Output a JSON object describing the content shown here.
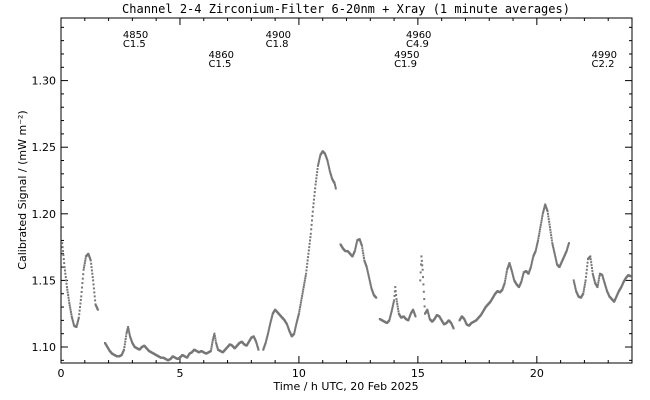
{
  "chart_data": {
    "type": "scatter",
    "title": "Channel 2-4   Zirconium-Filter   6-20nm + Xray   (1 minute averages)",
    "xlabel": "Time / h UTC, 20 Feb 2025",
    "ylabel": "Calibrated Signal / (mW m⁻²)",
    "xlim": [
      0,
      24
    ],
    "ylim": [
      1.088,
      1.347
    ],
    "x_ticks": [
      0,
      5,
      10,
      15,
      20
    ],
    "y_ticks": [
      1.1,
      1.15,
      1.2,
      1.25,
      1.3
    ],
    "x_tick_labels": [
      "0",
      "5",
      "10",
      "15",
      "20"
    ],
    "y_tick_labels": [
      "1.10",
      "1.15",
      "1.20",
      "1.25",
      "1.30"
    ],
    "grid": false,
    "color": "#777777",
    "annotations": [
      {
        "x": 2.6,
        "level": "high",
        "number": "4850",
        "class": "C1.5"
      },
      {
        "x": 6.2,
        "level": "low",
        "number": "4860",
        "class": "C1.5"
      },
      {
        "x": 8.6,
        "level": "high",
        "number": "4900",
        "class": "C1.8"
      },
      {
        "x": 14.0,
        "level": "low",
        "number": "4950",
        "class": "C1.9"
      },
      {
        "x": 14.5,
        "level": "high",
        "number": "4960",
        "class": "C4.9"
      },
      {
        "x": 22.3,
        "level": "low",
        "number": "4990",
        "class": "C2.2"
      }
    ],
    "series_points": [
      [
        0.05,
        1.178
      ],
      [
        0.15,
        1.16
      ],
      [
        0.25,
        1.145
      ],
      [
        0.35,
        1.133
      ],
      [
        0.45,
        1.123
      ],
      [
        0.55,
        1.116
      ],
      [
        0.65,
        1.115
      ],
      [
        0.75,
        1.122
      ],
      [
        0.85,
        1.138
      ],
      [
        0.95,
        1.158
      ],
      [
        1.05,
        1.168
      ],
      [
        1.15,
        1.17
      ],
      [
        1.25,
        1.165
      ],
      [
        1.35,
        1.15
      ],
      [
        1.45,
        1.132
      ],
      [
        1.55,
        1.128
      ],
      [
        1.85,
        1.103
      ],
      [
        1.95,
        1.1
      ],
      [
        2.05,
        1.097
      ],
      [
        2.15,
        1.095
      ],
      [
        2.25,
        1.094
      ],
      [
        2.35,
        1.093
      ],
      [
        2.45,
        1.093
      ],
      [
        2.55,
        1.094
      ],
      [
        2.65,
        1.098
      ],
      [
        2.75,
        1.11
      ],
      [
        2.82,
        1.115
      ],
      [
        2.9,
        1.108
      ],
      [
        3.0,
        1.103
      ],
      [
        3.1,
        1.1
      ],
      [
        3.2,
        1.099
      ],
      [
        3.3,
        1.098
      ],
      [
        3.4,
        1.1
      ],
      [
        3.5,
        1.101
      ],
      [
        3.6,
        1.099
      ],
      [
        3.7,
        1.097
      ],
      [
        3.8,
        1.096
      ],
      [
        3.9,
        1.095
      ],
      [
        4.0,
        1.094
      ],
      [
        4.1,
        1.093
      ],
      [
        4.2,
        1.092
      ],
      [
        4.3,
        1.092
      ],
      [
        4.4,
        1.091
      ],
      [
        4.5,
        1.09
      ],
      [
        4.6,
        1.091
      ],
      [
        4.7,
        1.093
      ],
      [
        4.8,
        1.092
      ],
      [
        4.9,
        1.091
      ],
      [
        5.0,
        1.092
      ],
      [
        5.1,
        1.094
      ],
      [
        5.2,
        1.093
      ],
      [
        5.3,
        1.092
      ],
      [
        5.4,
        1.095
      ],
      [
        5.5,
        1.096
      ],
      [
        5.6,
        1.098
      ],
      [
        5.7,
        1.097
      ],
      [
        5.8,
        1.096
      ],
      [
        5.9,
        1.097
      ],
      [
        6.0,
        1.096
      ],
      [
        6.1,
        1.095
      ],
      [
        6.2,
        1.096
      ],
      [
        6.3,
        1.097
      ],
      [
        6.38,
        1.105
      ],
      [
        6.45,
        1.11
      ],
      [
        6.52,
        1.103
      ],
      [
        6.6,
        1.098
      ],
      [
        6.7,
        1.097
      ],
      [
        6.8,
        1.096
      ],
      [
        6.9,
        1.098
      ],
      [
        7.0,
        1.1
      ],
      [
        7.1,
        1.102
      ],
      [
        7.2,
        1.101
      ],
      [
        7.3,
        1.099
      ],
      [
        7.4,
        1.101
      ],
      [
        7.5,
        1.103
      ],
      [
        7.6,
        1.104
      ],
      [
        7.7,
        1.102
      ],
      [
        7.8,
        1.101
      ],
      [
        7.9,
        1.104
      ],
      [
        8.0,
        1.107
      ],
      [
        8.1,
        1.108
      ],
      [
        8.2,
        1.104
      ],
      [
        8.3,
        1.098
      ],
      [
        8.5,
        1.098
      ],
      [
        8.6,
        1.103
      ],
      [
        8.7,
        1.11
      ],
      [
        8.8,
        1.118
      ],
      [
        8.9,
        1.125
      ],
      [
        9.0,
        1.128
      ],
      [
        9.1,
        1.126
      ],
      [
        9.2,
        1.124
      ],
      [
        9.3,
        1.122
      ],
      [
        9.4,
        1.12
      ],
      [
        9.5,
        1.117
      ],
      [
        9.6,
        1.112
      ],
      [
        9.7,
        1.108
      ],
      [
        9.8,
        1.11
      ],
      [
        9.9,
        1.118
      ],
      [
        10.0,
        1.125
      ],
      [
        10.1,
        1.135
      ],
      [
        10.2,
        1.145
      ],
      [
        10.3,
        1.155
      ],
      [
        10.4,
        1.17
      ],
      [
        10.5,
        1.185
      ],
      [
        10.6,
        1.205
      ],
      [
        10.7,
        1.222
      ],
      [
        10.8,
        1.236
      ],
      [
        10.9,
        1.244
      ],
      [
        11.0,
        1.247
      ],
      [
        11.1,
        1.245
      ],
      [
        11.2,
        1.24
      ],
      [
        11.3,
        1.232
      ],
      [
        11.4,
        1.226
      ],
      [
        11.5,
        1.223
      ],
      [
        11.55,
        1.219
      ],
      [
        11.75,
        1.177
      ],
      [
        11.85,
        1.174
      ],
      [
        11.95,
        1.172
      ],
      [
        12.05,
        1.172
      ],
      [
        12.15,
        1.17
      ],
      [
        12.25,
        1.168
      ],
      [
        12.35,
        1.172
      ],
      [
        12.45,
        1.18
      ],
      [
        12.55,
        1.181
      ],
      [
        12.65,
        1.176
      ],
      [
        12.75,
        1.165
      ],
      [
        12.85,
        1.16
      ],
      [
        12.95,
        1.152
      ],
      [
        13.05,
        1.144
      ],
      [
        13.15,
        1.139
      ],
      [
        13.25,
        1.137
      ],
      [
        13.4,
        1.121
      ],
      [
        13.5,
        1.12
      ],
      [
        13.6,
        1.119
      ],
      [
        13.7,
        1.118
      ],
      [
        13.8,
        1.12
      ],
      [
        13.9,
        1.127
      ],
      [
        14.0,
        1.135
      ],
      [
        14.05,
        1.145
      ],
      [
        14.1,
        1.136
      ],
      [
        14.2,
        1.125
      ],
      [
        14.3,
        1.122
      ],
      [
        14.4,
        1.123
      ],
      [
        14.5,
        1.121
      ],
      [
        14.6,
        1.12
      ],
      [
        14.7,
        1.125
      ],
      [
        14.8,
        1.128
      ],
      [
        14.9,
        1.123
      ],
      [
        15.1,
        1.15
      ],
      [
        15.15,
        1.168
      ],
      [
        15.2,
        1.158
      ],
      [
        15.3,
        1.125
      ],
      [
        15.4,
        1.128
      ],
      [
        15.5,
        1.121
      ],
      [
        15.6,
        1.119
      ],
      [
        15.7,
        1.121
      ],
      [
        15.8,
        1.124
      ],
      [
        15.9,
        1.123
      ],
      [
        16.0,
        1.12
      ],
      [
        16.1,
        1.117
      ],
      [
        16.2,
        1.118
      ],
      [
        16.3,
        1.12
      ],
      [
        16.4,
        1.118
      ],
      [
        16.5,
        1.114
      ],
      [
        16.75,
        1.12
      ],
      [
        16.85,
        1.123
      ],
      [
        16.95,
        1.121
      ],
      [
        17.05,
        1.117
      ],
      [
        17.15,
        1.116
      ],
      [
        17.25,
        1.118
      ],
      [
        17.35,
        1.119
      ],
      [
        17.45,
        1.12
      ],
      [
        17.55,
        1.122
      ],
      [
        17.65,
        1.124
      ],
      [
        17.75,
        1.127
      ],
      [
        17.85,
        1.13
      ],
      [
        17.95,
        1.132
      ],
      [
        18.05,
        1.134
      ],
      [
        18.15,
        1.137
      ],
      [
        18.25,
        1.14
      ],
      [
        18.35,
        1.142
      ],
      [
        18.45,
        1.141
      ],
      [
        18.55,
        1.143
      ],
      [
        18.65,
        1.148
      ],
      [
        18.75,
        1.158
      ],
      [
        18.85,
        1.163
      ],
      [
        18.95,
        1.157
      ],
      [
        19.05,
        1.15
      ],
      [
        19.15,
        1.147
      ],
      [
        19.25,
        1.145
      ],
      [
        19.35,
        1.149
      ],
      [
        19.45,
        1.156
      ],
      [
        19.55,
        1.157
      ],
      [
        19.65,
        1.155
      ],
      [
        19.75,
        1.16
      ],
      [
        19.85,
        1.168
      ],
      [
        19.95,
        1.172
      ],
      [
        20.05,
        1.18
      ],
      [
        20.15,
        1.19
      ],
      [
        20.25,
        1.2
      ],
      [
        20.35,
        1.207
      ],
      [
        20.45,
        1.202
      ],
      [
        20.55,
        1.19
      ],
      [
        20.65,
        1.178
      ],
      [
        20.75,
        1.17
      ],
      [
        20.85,
        1.162
      ],
      [
        20.95,
        1.16
      ],
      [
        21.05,
        1.164
      ],
      [
        21.15,
        1.168
      ],
      [
        21.25,
        1.172
      ],
      [
        21.35,
        1.178
      ],
      [
        21.55,
        1.15
      ],
      [
        21.65,
        1.142
      ],
      [
        21.75,
        1.138
      ],
      [
        21.85,
        1.137
      ],
      [
        21.95,
        1.14
      ],
      [
        22.05,
        1.15
      ],
      [
        22.15,
        1.166
      ],
      [
        22.25,
        1.168
      ],
      [
        22.35,
        1.155
      ],
      [
        22.45,
        1.148
      ],
      [
        22.55,
        1.145
      ],
      [
        22.65,
        1.155
      ],
      [
        22.75,
        1.154
      ],
      [
        22.85,
        1.148
      ],
      [
        22.95,
        1.142
      ],
      [
        23.05,
        1.138
      ],
      [
        23.15,
        1.136
      ],
      [
        23.25,
        1.134
      ],
      [
        23.35,
        1.138
      ],
      [
        23.45,
        1.142
      ],
      [
        23.55,
        1.145
      ],
      [
        23.65,
        1.149
      ],
      [
        23.75,
        1.152
      ],
      [
        23.85,
        1.154
      ],
      [
        23.95,
        1.153
      ]
    ]
  }
}
